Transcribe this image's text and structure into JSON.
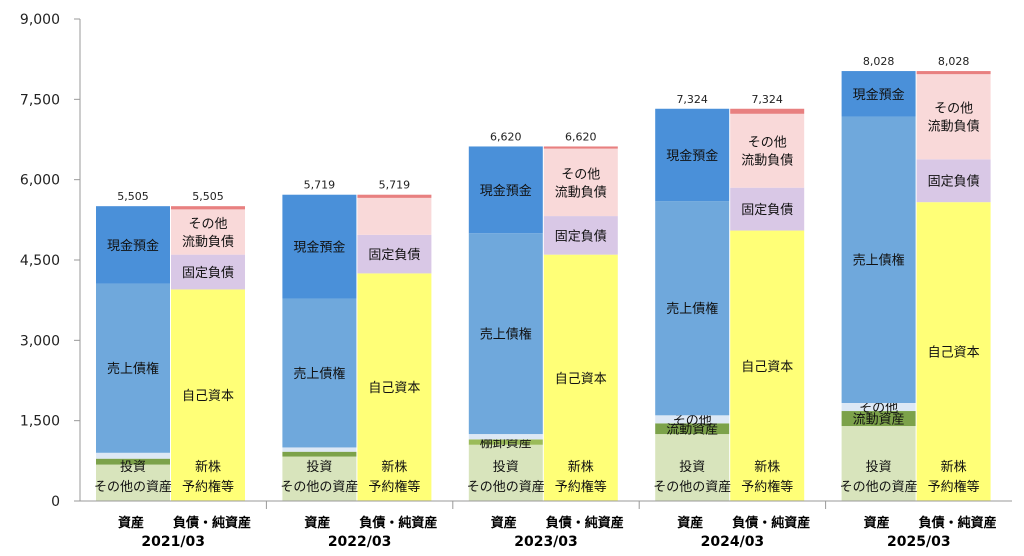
{
  "chart_data": {
    "type": "bar",
    "stacked": true,
    "ylim": [
      0,
      9000
    ],
    "yticks": [
      0,
      1500,
      3000,
      4500,
      6000,
      7500,
      9000
    ],
    "ytick_labels": [
      "0",
      "1,500",
      "3,000",
      "4,500",
      "6,000",
      "7,500",
      "9,000"
    ],
    "grid": false,
    "sub_labels": {
      "assets": "資産",
      "liabilities": "負債・純資産"
    },
    "colors": {
      "investment": "#d8e4bc",
      "inventory": "#9bbb59",
      "other_current_assets": "#7ca24a",
      "other_assets": "#dde8f5",
      "receivables": "#6fa8dc",
      "cash": "#4a90d9",
      "stock_options": "#ffff77",
      "equity": "#ffff77",
      "fixed_liabilities": "#d9c8e6",
      "other_current_liabilities": "#f9d9d9",
      "top_strip": "#e88080"
    },
    "periods": [
      {
        "label": "2021/03",
        "asset_total_label": "5,505",
        "liability_total_label": "5,505",
        "assets": [
          {
            "key": "investment",
            "value": 680,
            "label": ""
          },
          {
            "key": "other_current_assets",
            "value": 110,
            "label": ""
          },
          {
            "key": "other_assets",
            "value": 110,
            "label": ""
          },
          {
            "key": "receivables",
            "value": 3160,
            "label": "売上債権"
          },
          {
            "key": "cash",
            "value": 1445,
            "label": "現金預金"
          }
        ],
        "assets_bottom_labels": [
          "投資",
          "その他の資産"
        ],
        "liabilities": [
          {
            "key": "stock_options",
            "value": 3950,
            "label": "自己資本"
          },
          {
            "key": "fixed_liabilities",
            "value": 650,
            "label": "固定負債"
          },
          {
            "key": "other_current_liabilities",
            "value": 845,
            "label": "その他\n流動負債"
          },
          {
            "key": "top_strip",
            "value": 60,
            "label": ""
          }
        ],
        "liabilities_bottom_labels": [
          "新株",
          "予約権等"
        ]
      },
      {
        "label": "2022/03",
        "asset_total_label": "5,719",
        "liability_total_label": "5,719",
        "assets": [
          {
            "key": "investment",
            "value": 830,
            "label": ""
          },
          {
            "key": "other_current_assets",
            "value": 90,
            "label": ""
          },
          {
            "key": "other_assets",
            "value": 80,
            "label": ""
          },
          {
            "key": "receivables",
            "value": 2780,
            "label": "売上債権"
          },
          {
            "key": "cash",
            "value": 1939,
            "label": "現金預金"
          }
        ],
        "assets_bottom_labels": [
          "投資",
          "その他の資産"
        ],
        "liabilities": [
          {
            "key": "stock_options",
            "value": 4250,
            "label": "自己資本"
          },
          {
            "key": "fixed_liabilities",
            "value": 720,
            "label": "固定負債"
          },
          {
            "key": "other_current_liabilities",
            "value": 690,
            "label": ""
          },
          {
            "key": "top_strip",
            "value": 59,
            "label": ""
          }
        ],
        "liabilities_bottom_labels": [
          "新株",
          "予約権等"
        ]
      },
      {
        "label": "2023/03",
        "asset_total_label": "6,620",
        "liability_total_label": "6,620",
        "assets": [
          {
            "key": "investment",
            "value": 1050,
            "label": ""
          },
          {
            "key": "inventory",
            "value": 100,
            "label": "棚卸資産"
          },
          {
            "key": "other_assets",
            "value": 100,
            "label": ""
          },
          {
            "key": "receivables",
            "value": 3750,
            "label": "売上債権"
          },
          {
            "key": "cash",
            "value": 1620,
            "label": "現金預金"
          }
        ],
        "assets_bottom_labels": [
          "投資",
          "その他の資産"
        ],
        "liabilities": [
          {
            "key": "stock_options",
            "value": 4600,
            "label": "自己資本"
          },
          {
            "key": "fixed_liabilities",
            "value": 720,
            "label": "固定負債"
          },
          {
            "key": "other_current_liabilities",
            "value": 1260,
            "label": "その他\n流動負債"
          },
          {
            "key": "top_strip",
            "value": 40,
            "label": ""
          }
        ],
        "liabilities_bottom_labels": [
          "新株",
          "予約権等"
        ]
      },
      {
        "label": "2024/03",
        "asset_total_label": "7,324",
        "liability_total_label": "7,324",
        "assets": [
          {
            "key": "investment",
            "value": 1250,
            "label": ""
          },
          {
            "key": "other_current_assets",
            "value": 200,
            "label": "流動資産"
          },
          {
            "key": "other_assets",
            "value": 150,
            "label": "その他"
          },
          {
            "key": "receivables",
            "value": 4000,
            "label": "売上債権"
          },
          {
            "key": "cash",
            "value": 1724,
            "label": "現金預金"
          }
        ],
        "assets_bottom_labels": [
          "投資",
          "その他の資産"
        ],
        "liabilities": [
          {
            "key": "stock_options",
            "value": 5050,
            "label": "自己資本"
          },
          {
            "key": "fixed_liabilities",
            "value": 800,
            "label": "固定負債"
          },
          {
            "key": "other_current_liabilities",
            "value": 1380,
            "label": "その他\n流動負債"
          },
          {
            "key": "top_strip",
            "value": 94,
            "label": ""
          }
        ],
        "liabilities_bottom_labels": [
          "新株",
          "予約権等"
        ]
      },
      {
        "label": "2025/03",
        "asset_total_label": "8,028",
        "liability_total_label": "8,028",
        "assets": [
          {
            "key": "investment",
            "value": 1400,
            "label": ""
          },
          {
            "key": "other_current_assets",
            "value": 280,
            "label": "流動資産"
          },
          {
            "key": "other_assets",
            "value": 150,
            "label": "その他"
          },
          {
            "key": "receivables",
            "value": 5350,
            "label": "売上債権"
          },
          {
            "key": "cash",
            "value": 848,
            "label": "現金預金"
          }
        ],
        "assets_bottom_labels": [
          "投資",
          "その他の資産"
        ],
        "liabilities": [
          {
            "key": "stock_options",
            "value": 5580,
            "label": "自己資本"
          },
          {
            "key": "fixed_liabilities",
            "value": 800,
            "label": "固定負債"
          },
          {
            "key": "other_current_liabilities",
            "value": 1590,
            "label": "その他\n流動負債"
          },
          {
            "key": "top_strip",
            "value": 58,
            "label": ""
          }
        ],
        "liabilities_bottom_labels": [
          "新株",
          "予約権等"
        ]
      }
    ]
  }
}
